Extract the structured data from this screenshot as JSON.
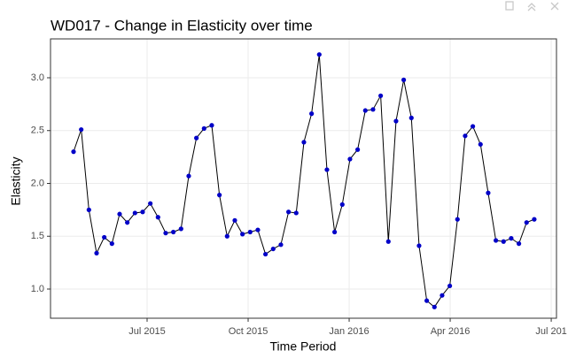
{
  "chart_data": {
    "type": "line",
    "title": "WD017 - Change in Elasticity over time",
    "x_label": "Time Period",
    "y_label": "Elasticity",
    "x": [
      2015.318,
      2015.337,
      2015.356,
      2015.375,
      2015.394,
      2015.413,
      2015.432,
      2015.451,
      2015.47,
      2015.489,
      2015.508,
      2015.527,
      2015.546,
      2015.565,
      2015.584,
      2015.603,
      2015.622,
      2015.641,
      2015.66,
      2015.679,
      2015.698,
      2015.717,
      2015.736,
      2015.755,
      2015.774,
      2015.793,
      2015.812,
      2015.831,
      2015.85,
      2015.869,
      2015.888,
      2015.907,
      2015.926,
      2015.945,
      2015.964,
      2015.983,
      2016.002,
      2016.021,
      2016.04,
      2016.059,
      2016.078,
      2016.097,
      2016.116,
      2016.135,
      2016.154,
      2016.173,
      2016.192,
      2016.211,
      2016.23,
      2016.249,
      2016.268,
      2016.287,
      2016.306,
      2016.325,
      2016.344,
      2016.363,
      2016.382,
      2016.401,
      2016.42,
      2016.439,
      2016.458
    ],
    "values": [
      2.3,
      2.51,
      1.75,
      1.34,
      1.49,
      1.43,
      1.71,
      1.63,
      1.72,
      1.73,
      1.81,
      1.68,
      1.53,
      1.54,
      1.57,
      2.07,
      2.43,
      2.52,
      2.55,
      1.89,
      1.5,
      1.65,
      1.52,
      1.54,
      1.56,
      1.33,
      1.38,
      1.42,
      1.73,
      1.72,
      2.39,
      2.66,
      3.22,
      2.13,
      1.54,
      1.8,
      2.23,
      2.32,
      2.69,
      2.7,
      2.83,
      1.45,
      2.59,
      2.98,
      2.62,
      1.41,
      0.89,
      0.83,
      0.94,
      1.03,
      1.66,
      2.45,
      2.54,
      2.37,
      1.91,
      1.46,
      1.45,
      1.48,
      1.43,
      1.63,
      1.66
    ],
    "line_color": "#000000",
    "color": "#0000c8",
    "xlim": [
      2015.261,
      2016.513
    ],
    "ylim": [
      0.724,
      3.368
    ],
    "xticks": [
      {
        "value": 2015.5,
        "label": "Jul 2015"
      },
      {
        "value": 2015.75,
        "label": "Oct 2015"
      },
      {
        "value": 2016.0,
        "label": "Jan 2016"
      },
      {
        "value": 2016.25,
        "label": "Apr 2016"
      },
      {
        "value": 2016.5,
        "label": "Jul 201"
      }
    ],
    "yticks": [
      {
        "value": 1.0,
        "label": "1.0"
      },
      {
        "value": 1.5,
        "label": "1.5"
      },
      {
        "value": 2.0,
        "label": "2.0"
      },
      {
        "value": 2.5,
        "label": "2.5"
      },
      {
        "value": 3.0,
        "label": "3.0"
      }
    ],
    "grid": true
  }
}
